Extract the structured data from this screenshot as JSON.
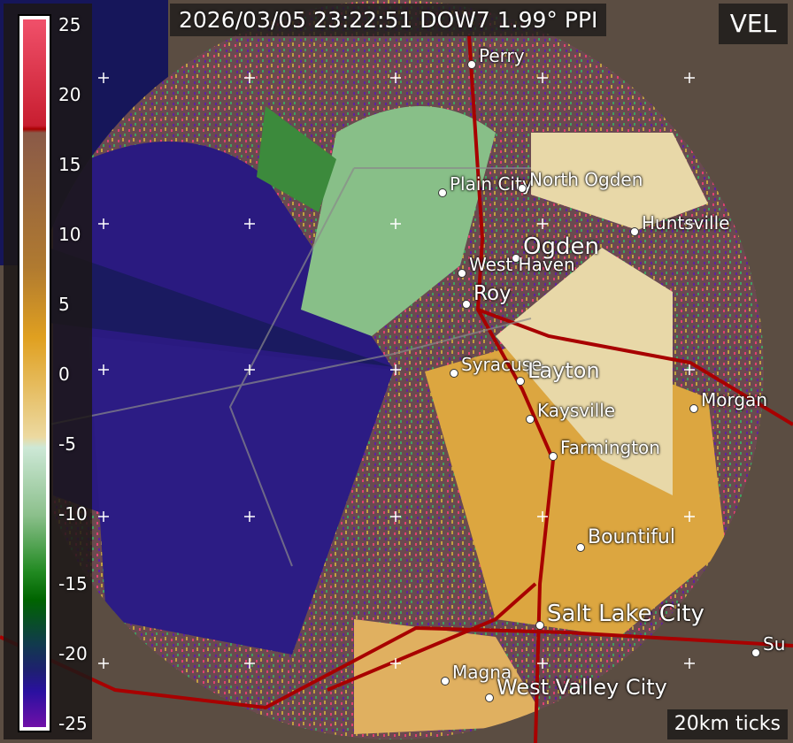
{
  "header": {
    "title": "2026/03/05 23:22:51 DOW7 1.99° PPI",
    "field": "VEL"
  },
  "footer": {
    "tick_note": "20km ticks"
  },
  "colorbar": {
    "labels": [
      "25",
      "20",
      "15",
      "10",
      "5",
      "0",
      "-5",
      "-10",
      "-15",
      "-20",
      "-25"
    ],
    "min": -25,
    "max": 25
  },
  "colors": {
    "inbound": "#2a1a8a",
    "outbound": "#e0a530",
    "background": "#5b4d42",
    "roads": "#b00000"
  },
  "cities": [
    {
      "name": "Perry"
    },
    {
      "name": "Plain City"
    },
    {
      "name": "North Ogden"
    },
    {
      "name": "Huntsville"
    },
    {
      "name": "Ogden"
    },
    {
      "name": "West Haven"
    },
    {
      "name": "Roy"
    },
    {
      "name": "Syracuse"
    },
    {
      "name": "Layton"
    },
    {
      "name": "Kaysville"
    },
    {
      "name": "Morgan"
    },
    {
      "name": "Farmington"
    },
    {
      "name": "Bountiful"
    },
    {
      "name": "Salt Lake City"
    },
    {
      "name": "Magna"
    },
    {
      "name": "West Valley City"
    },
    {
      "name": "Su"
    }
  ]
}
